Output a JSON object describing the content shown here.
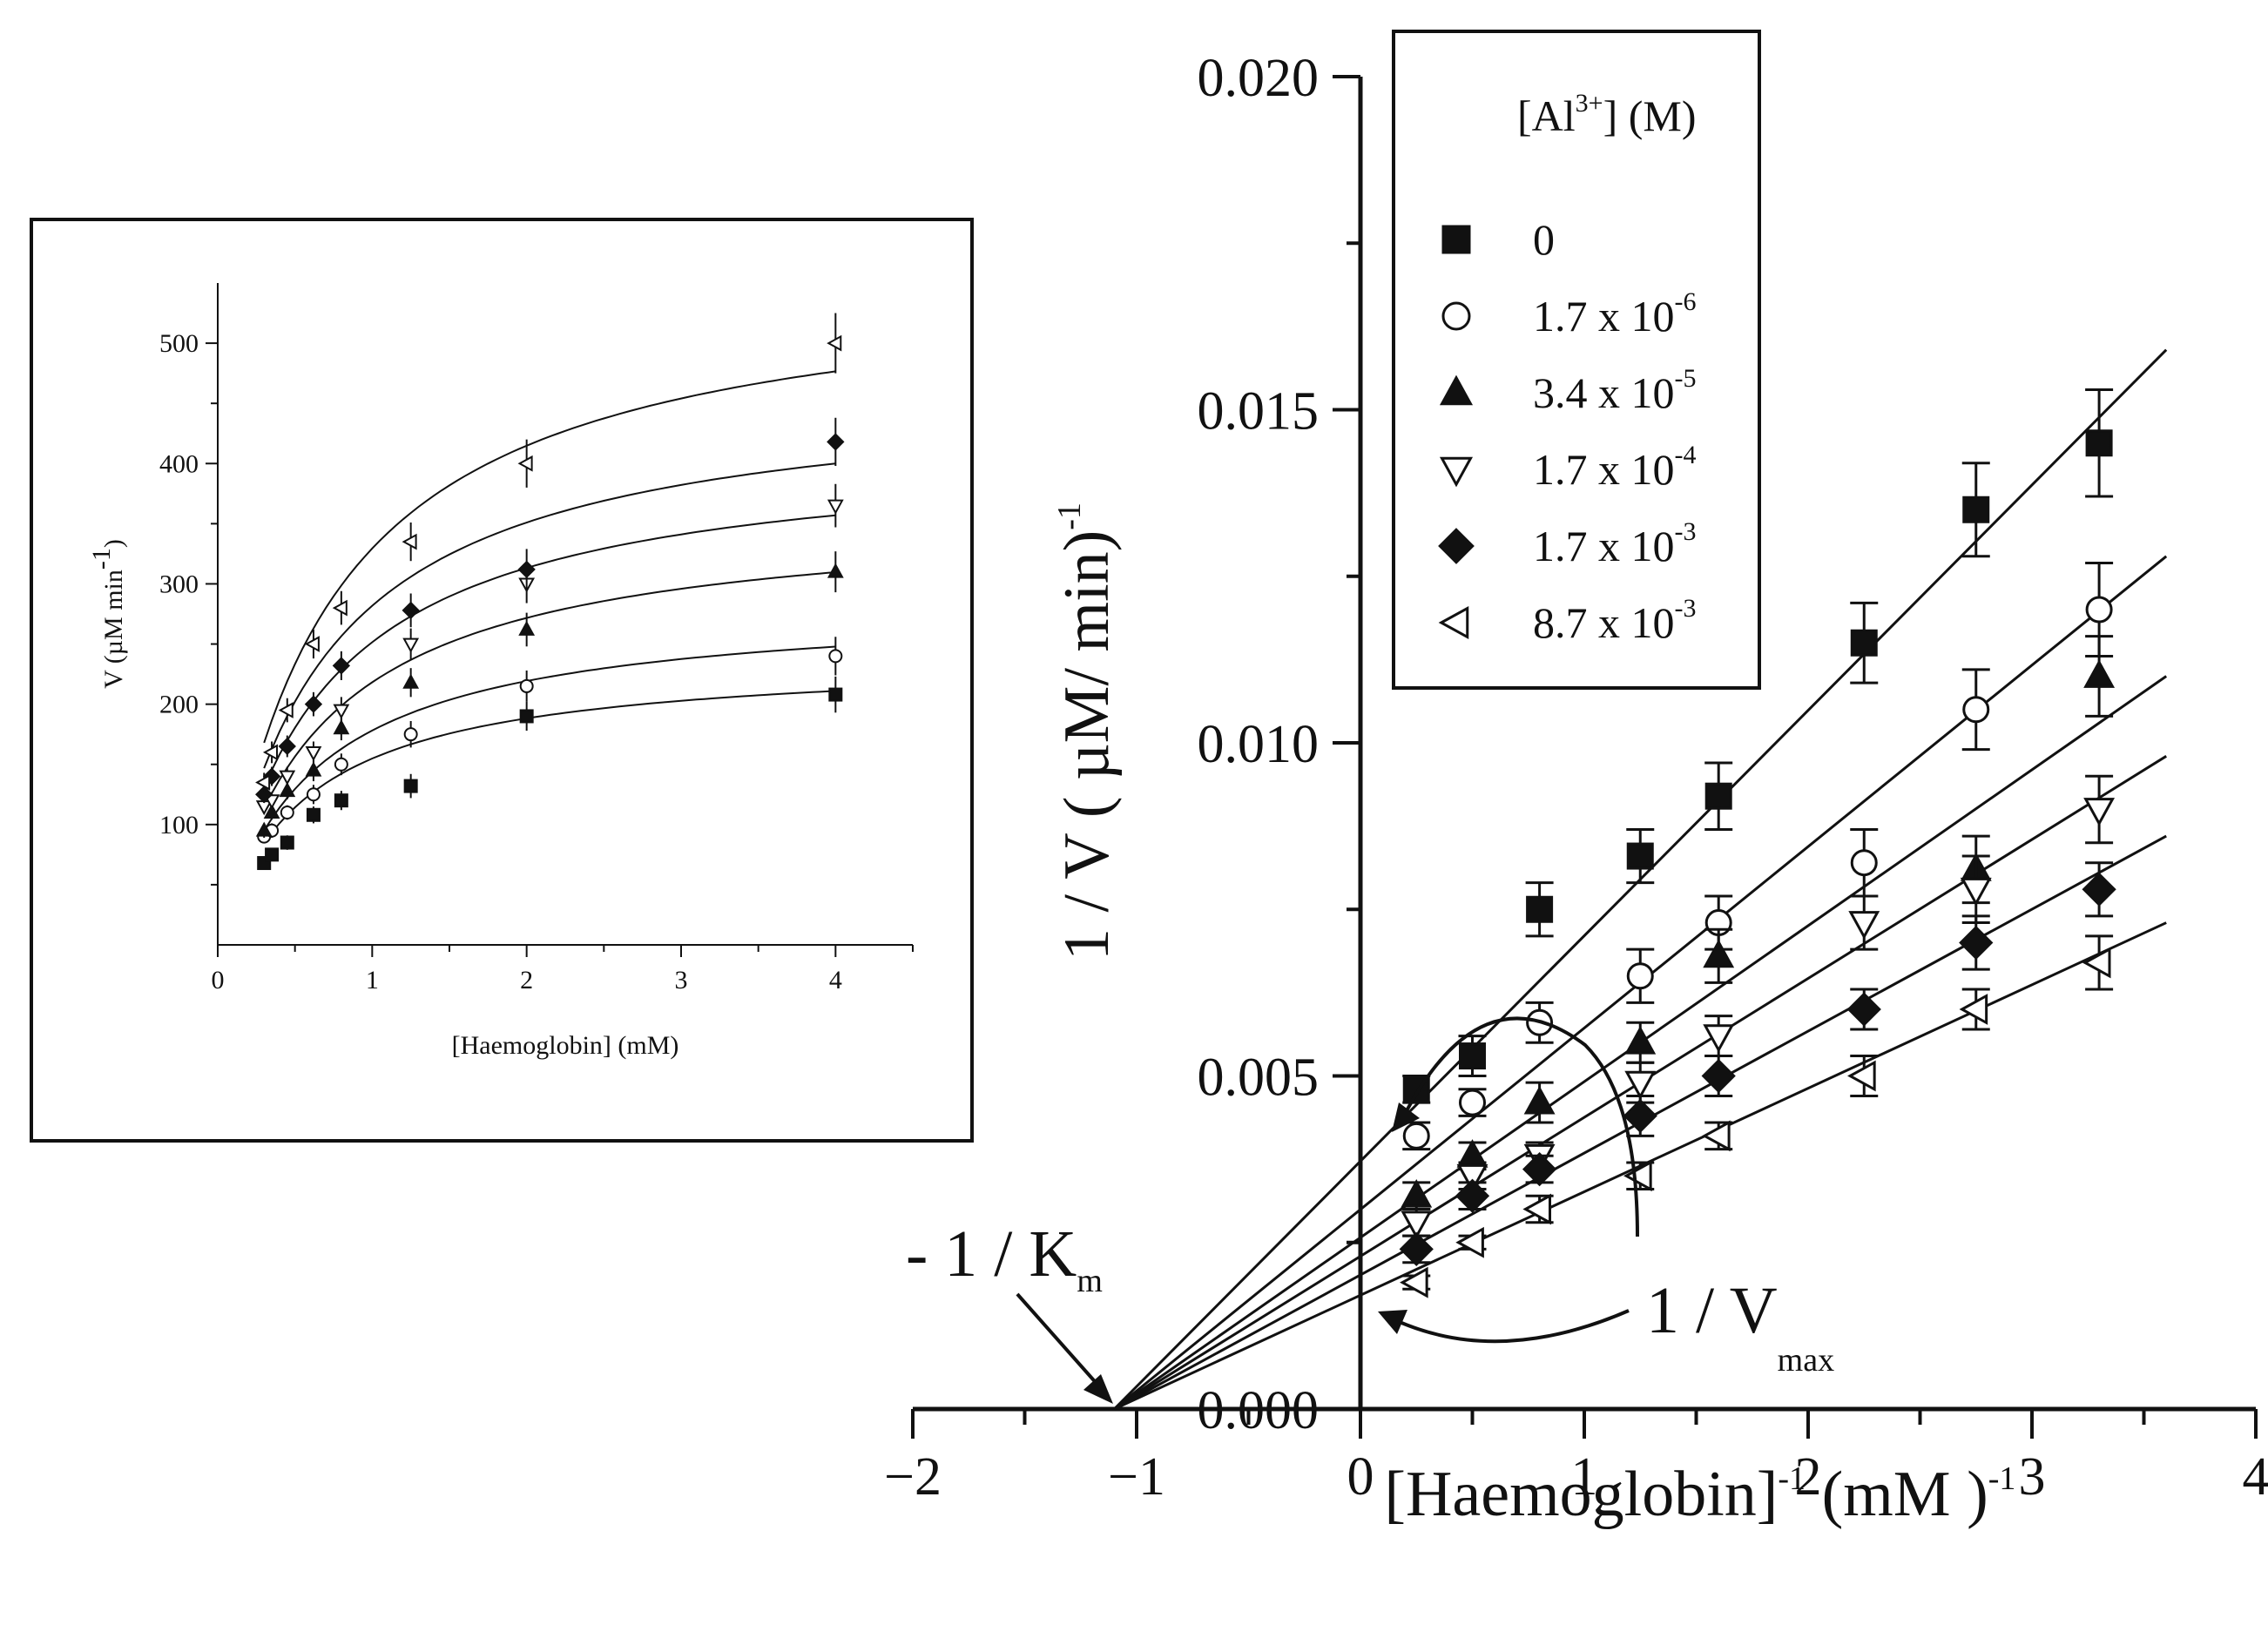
{
  "chart_data": [
    {
      "type": "scatter",
      "panel": "main",
      "xlabel_parts": {
        "base": "[Haemoglobin]",
        "sup1": "-1",
        "mid": " (mM )",
        "sup2": "-1"
      },
      "ylabel_parts": {
        "base": "1 / V ( µM/ min)",
        "sup": "-1"
      },
      "xlim": [
        -2,
        4
      ],
      "ylim": [
        0,
        0.02
      ],
      "x_ticks": [
        -2,
        -1,
        0,
        1,
        2,
        3,
        4
      ],
      "x_tick_labels": [
        "−2",
        "−1",
        "0",
        "1",
        "2",
        "3",
        "4"
      ],
      "y_ticks": [
        0,
        0.005,
        0.01,
        0.015,
        0.02
      ],
      "y_tick_labels": [
        "0.000",
        "0.005",
        "0.010",
        "0.015",
        "0.020"
      ],
      "legend": {
        "title_parts": {
          "a": "[Al",
          "sup": "3+",
          "b": "] (M)"
        },
        "position": "top-left"
      },
      "fit_lines": "linear regression per series, extrapolated to intercept at x = -1.1",
      "annotations": {
        "km": {
          "base": "- 1 / K",
          "sub": "m"
        },
        "vmax": {
          "base": "1 / V",
          "sub": "max"
        }
      },
      "series": [
        {
          "label_parts": {
            "base": "0",
            "sup": ""
          },
          "marker": "square-filled",
          "x": [
            0.25,
            0.5,
            0.8,
            1.25,
            1.6,
            2.25,
            2.75,
            3.3
          ],
          "y": [
            0.0048,
            0.0053,
            0.0075,
            0.0083,
            0.0092,
            0.0115,
            0.0135,
            0.0145
          ],
          "err": [
            0.0002,
            0.0003,
            0.0004,
            0.0004,
            0.0005,
            0.0006,
            0.0007,
            0.0008
          ],
          "line": {
            "x": [
              -1.1,
              3.6
            ],
            "y": [
              0.0,
              0.0159
            ]
          }
        },
        {
          "label_parts": {
            "base": "1.7 x 10",
            "sup": "-6"
          },
          "marker": "circle-open",
          "x": [
            0.25,
            0.5,
            0.8,
            1.25,
            1.6,
            2.25,
            2.75,
            3.3
          ],
          "y": [
            0.0041,
            0.0046,
            0.0058,
            0.0065,
            0.0073,
            0.0082,
            0.0105,
            0.012
          ],
          "err": [
            0.0002,
            0.0002,
            0.0003,
            0.0004,
            0.0004,
            0.0005,
            0.0006,
            0.0007
          ],
          "line": {
            "x": [
              -1.1,
              3.6
            ],
            "y": [
              0.0,
              0.0128
            ]
          }
        },
        {
          "label_parts": {
            "base": "3.4 x 10",
            "sup": "-5"
          },
          "marker": "triangle-up-filled",
          "x": [
            0.25,
            0.5,
            0.8,
            1.25,
            1.6,
            2.75,
            3.3
          ],
          "y": [
            0.0032,
            0.0038,
            0.0046,
            0.0055,
            0.0068,
            0.0081,
            0.011
          ],
          "err": [
            0.0002,
            0.0002,
            0.0003,
            0.0003,
            0.0004,
            0.0005,
            0.0006
          ],
          "line": {
            "x": [
              -1.1,
              3.6
            ],
            "y": [
              0.0,
              0.011
            ]
          }
        },
        {
          "label_parts": {
            "base": "1.7 x 10",
            "sup": "-4"
          },
          "marker": "triangle-down-open",
          "x": [
            0.25,
            0.5,
            0.8,
            1.25,
            1.6,
            2.25,
            2.75,
            3.3
          ],
          "y": [
            0.0028,
            0.0035,
            0.0038,
            0.0049,
            0.0056,
            0.0073,
            0.0078,
            0.009
          ],
          "err": [
            0.0002,
            0.0002,
            0.0002,
            0.0003,
            0.0003,
            0.0004,
            0.0005,
            0.0005
          ],
          "line": {
            "x": [
              -1.1,
              3.6
            ],
            "y": [
              0.0,
              0.0098
            ]
          }
        },
        {
          "label_parts": {
            "base": "1.7 x 10",
            "sup": "-3"
          },
          "marker": "diamond-filled",
          "x": [
            0.25,
            0.5,
            0.8,
            1.25,
            1.6,
            2.25,
            2.75,
            3.3
          ],
          "y": [
            0.0024,
            0.0032,
            0.0036,
            0.0044,
            0.005,
            0.006,
            0.007,
            0.0078
          ],
          "err": [
            0.0002,
            0.0002,
            0.0002,
            0.0003,
            0.0003,
            0.0003,
            0.0004,
            0.0004
          ],
          "line": {
            "x": [
              -1.1,
              3.6
            ],
            "y": [
              0.0,
              0.0086
            ]
          }
        },
        {
          "label_parts": {
            "base": "8.7 x 10",
            "sup": "-3"
          },
          "marker": "triangle-left-open",
          "x": [
            0.25,
            0.5,
            0.8,
            1.25,
            1.6,
            2.25,
            2.75,
            3.3
          ],
          "y": [
            0.0019,
            0.0025,
            0.003,
            0.0035,
            0.0041,
            0.005,
            0.006,
            0.0067
          ],
          "err": [
            0.0001,
            0.0001,
            0.0002,
            0.0002,
            0.0002,
            0.0003,
            0.0003,
            0.0004
          ],
          "line": {
            "x": [
              -1.1,
              3.6
            ],
            "y": [
              0.0,
              0.0073
            ]
          }
        }
      ]
    },
    {
      "type": "scatter",
      "panel": "inset",
      "xlabel": "[Haemoglobin] (mM)",
      "ylabel_parts": {
        "base": "V (µM min",
        "sup": "-1",
        "end": ")"
      },
      "xlim": [
        0,
        4.5
      ],
      "ylim": [
        0,
        550
      ],
      "x_ticks": [
        0,
        1,
        2,
        3,
        4
      ],
      "x_tick_labels": [
        "0",
        "1",
        "2",
        "3",
        "4"
      ],
      "y_ticks": [
        100,
        200,
        300,
        400,
        500
      ],
      "y_tick_labels": [
        "100",
        "200",
        "300",
        "400",
        "500"
      ],
      "fit_curves": "hyperbolic (Michaelis-Menten) fit per series",
      "series": [
        {
          "marker": "square-filled",
          "x": [
            0.3,
            0.35,
            0.45,
            0.62,
            0.8,
            1.25,
            2.0,
            4.0
          ],
          "y": [
            68,
            75,
            85,
            108,
            120,
            132,
            190,
            208
          ],
          "err": [
            5,
            5,
            6,
            7,
            8,
            10,
            12,
            15
          ],
          "curve": {
            "vmax": 240,
            "km": 0.55
          }
        },
        {
          "marker": "circle-open",
          "x": [
            0.3,
            0.35,
            0.45,
            0.62,
            0.8,
            1.25,
            2.0,
            4.0
          ],
          "y": [
            90,
            95,
            110,
            125,
            150,
            175,
            215,
            240
          ],
          "err": [
            5,
            6,
            6,
            8,
            9,
            11,
            13,
            16
          ],
          "curve": {
            "vmax": 285,
            "km": 0.6
          }
        },
        {
          "marker": "triangle-up-filled",
          "x": [
            0.3,
            0.35,
            0.45,
            0.62,
            0.8,
            1.25,
            2.0,
            4.0
          ],
          "y": [
            95,
            110,
            128,
            145,
            180,
            218,
            262,
            310
          ],
          "err": [
            6,
            6,
            7,
            9,
            10,
            12,
            14,
            17
          ],
          "curve": {
            "vmax": 360,
            "km": 0.65
          }
        },
        {
          "marker": "triangle-down-open",
          "x": [
            0.3,
            0.35,
            0.45,
            0.62,
            0.8,
            1.25,
            2.0,
            4.0
          ],
          "y": [
            115,
            120,
            140,
            160,
            195,
            250,
            300,
            365
          ],
          "err": [
            6,
            7,
            8,
            9,
            11,
            13,
            16,
            18
          ],
          "curve": {
            "vmax": 415,
            "km": 0.65
          }
        },
        {
          "marker": "diamond-filled",
          "x": [
            0.3,
            0.35,
            0.45,
            0.62,
            0.8,
            1.25,
            2.0,
            4.0
          ],
          "y": [
            125,
            140,
            165,
            200,
            232,
            278,
            312,
            418
          ],
          "err": [
            7,
            8,
            9,
            10,
            12,
            14,
            17,
            20
          ],
          "curve": {
            "vmax": 465,
            "km": 0.65
          }
        },
        {
          "marker": "triangle-left-open",
          "x": [
            0.3,
            0.35,
            0.45,
            0.62,
            0.8,
            1.25,
            2.0,
            4.0
          ],
          "y": [
            135,
            160,
            195,
            250,
            280,
            335,
            400,
            500
          ],
          "err": [
            8,
            9,
            10,
            12,
            14,
            16,
            20,
            25
          ],
          "curve": {
            "vmax": 560,
            "km": 0.7
          }
        }
      ]
    }
  ]
}
